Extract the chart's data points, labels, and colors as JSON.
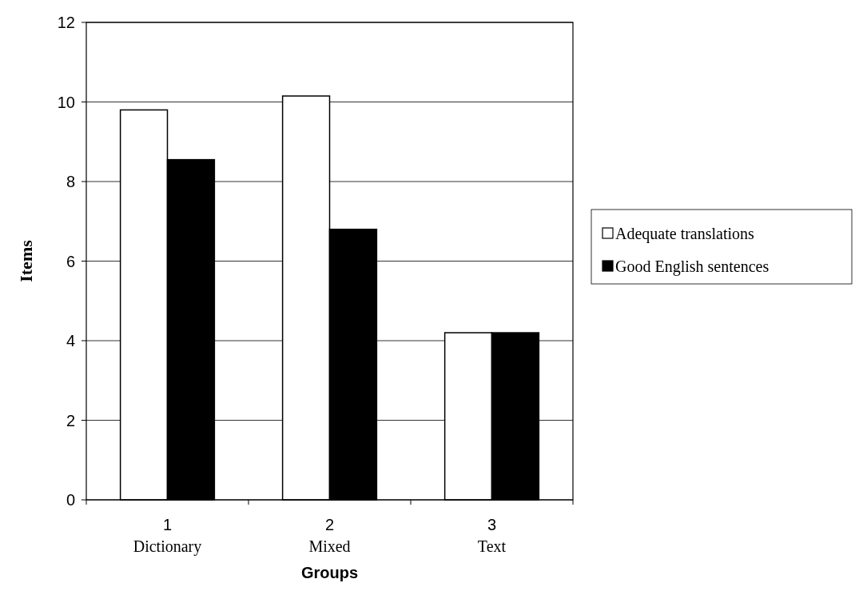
{
  "chart_data": {
    "type": "bar",
    "xlabel": "Groups",
    "ylabel": "Items",
    "categories": [
      "1\nDictionary",
      "2\nMixed",
      "3\nText"
    ],
    "series": [
      {
        "name": "Adequate translations",
        "color": "#ffffff",
        "values": [
          9.8,
          10.15,
          4.2
        ]
      },
      {
        "name": "Good English sentences",
        "color": "#000000",
        "values": [
          8.55,
          6.8,
          4.2
        ]
      }
    ],
    "ylim": [
      0,
      12
    ],
    "yticks": [
      0,
      2,
      4,
      6,
      8,
      10,
      12
    ],
    "grid": "y",
    "legend": "right"
  }
}
